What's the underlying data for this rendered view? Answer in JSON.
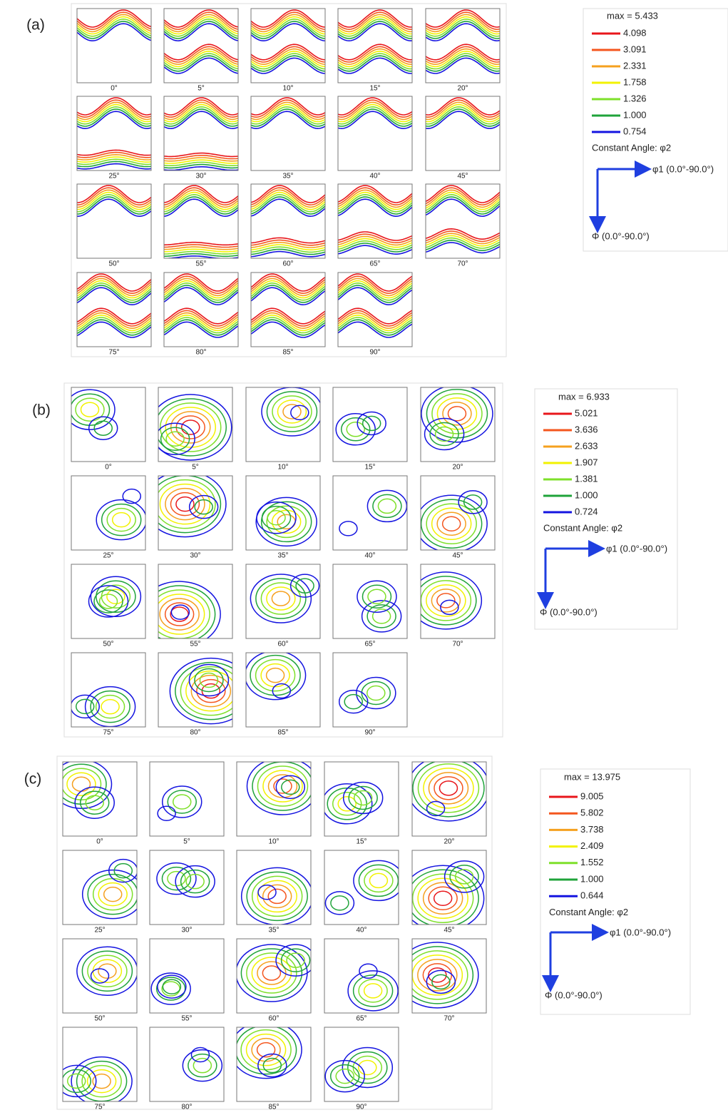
{
  "panels": [
    {
      "label": "(a)",
      "sections": [
        "0°",
        "5°",
        "10°",
        "15°",
        "20°",
        "25°",
        "30°",
        "35°",
        "40°",
        "45°",
        "50°",
        "55°",
        "60°",
        "65°",
        "70°",
        "75°",
        "80°",
        "85°",
        "90°"
      ],
      "legend": {
        "max": "max = 5.433",
        "levels": [
          "4.098",
          "3.091",
          "2.331",
          "1.758",
          "1.326",
          "1.000",
          "0.754"
        ],
        "constant": "Constant Angle: φ2",
        "x_axis": "φ1 (0.0°-90.0°)",
        "y_axis": "Φ (0.0°-90.0°)"
      }
    },
    {
      "label": "(b)",
      "sections": [
        "0°",
        "5°",
        "10°",
        "15°",
        "20°",
        "25°",
        "30°",
        "35°",
        "40°",
        "45°",
        "50°",
        "55°",
        "60°",
        "65°",
        "70°",
        "75°",
        "80°",
        "85°",
        "90°"
      ],
      "legend": {
        "max": "max = 6.933",
        "levels": [
          "5.021",
          "3.636",
          "2.633",
          "1.907",
          "1.381",
          "1.000",
          "0.724"
        ],
        "constant": "Constant Angle: φ2",
        "x_axis": "φ1 (0.0°-90.0°)",
        "y_axis": "Φ (0.0°-90.0°)"
      }
    },
    {
      "label": "(c)",
      "sections": [
        "0°",
        "5°",
        "10°",
        "15°",
        "20°",
        "25°",
        "30°",
        "35°",
        "40°",
        "45°",
        "50°",
        "55°",
        "60°",
        "65°",
        "70°",
        "75°",
        "80°",
        "85°",
        "90°"
      ],
      "legend": {
        "max": "max = 13.975",
        "levels": [
          "9.005",
          "5.802",
          "3.738",
          "2.409",
          "1.552",
          "1.000",
          "0.644"
        ],
        "constant": "Constant Angle: φ2",
        "x_axis": "φ1 (0.0°-90.0°)",
        "y_axis": "Φ (0.0°-90.0°)"
      }
    }
  ],
  "colors": [
    "#e8161b",
    "#f4561e",
    "#f5a01e",
    "#f2f200",
    "#7ee02a",
    "#1fa33a",
    "#1414e0"
  ]
}
